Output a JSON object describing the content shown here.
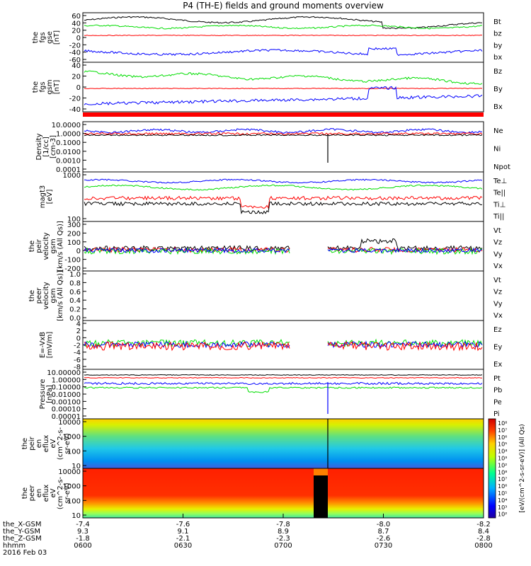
{
  "title": "P4 (TH-E) fields and ground moments overview",
  "colors": {
    "black": "#000000",
    "red": "#ff0000",
    "green": "#00dd00",
    "blue": "#0000ff"
  },
  "chart_data": [
    {
      "type": "line",
      "ylabel": [
        "the",
        "fgs",
        "gse",
        "[nT]"
      ],
      "yticks": [
        "60",
        "40",
        "20",
        "0",
        "-20",
        "-40",
        "-60"
      ],
      "series": [
        {
          "name": "Bt",
          "color": "#000000"
        },
        {
          "name": "bz",
          "color": "#ff0000"
        },
        {
          "name": "by",
          "color": "#00dd00"
        },
        {
          "name": "bx",
          "color": "#0000ff"
        }
      ]
    },
    {
      "type": "line",
      "ylabel": [
        "the",
        "fgs",
        "gsm",
        "[nT]"
      ],
      "yticks": [
        "40",
        "20",
        "0",
        "-20",
        "-40"
      ],
      "series": [
        {
          "name": "Bz",
          "color": "#ff0000"
        },
        {
          "name": "By",
          "color": "#00dd00"
        },
        {
          "name": "Bx",
          "color": "#0000ff"
        }
      ]
    },
    {
      "type": "line",
      "ylabel": [
        "Density",
        "[1/cc]",
        "[cm-3]"
      ],
      "yticks": [
        "10.0000",
        "1.0000",
        "0.1000",
        "0.0100",
        "0.0010",
        "0.0001"
      ],
      "log": true,
      "series": [
        {
          "name": "Ne",
          "color": "#ff0000"
        },
        {
          "name": "Ni",
          "color": "#000000"
        },
        {
          "name": "Npot",
          "color": "#0000ff"
        }
      ]
    },
    {
      "type": "line",
      "ylabel": [
        "magt3",
        "[eV]"
      ],
      "yticks": [
        "1000",
        "100"
      ],
      "log": true,
      "series": [
        {
          "name": "Te⊥",
          "color": "#ff0000"
        },
        {
          "name": "Te||",
          "color": "#000000"
        },
        {
          "name": "Ti⊥",
          "color": "#0000ff"
        },
        {
          "name": "Ti||",
          "color": "#00dd00"
        }
      ]
    },
    {
      "type": "line",
      "ylabel": [
        "the",
        "peir",
        "velocity",
        "gsm",
        "[km/s (All Qs)]"
      ],
      "yticks": [
        "300",
        "200",
        "100",
        "0",
        "-100",
        "-200"
      ],
      "series": [
        {
          "name": "Vt",
          "color": "#000000"
        },
        {
          "name": "Vz",
          "color": "#ff0000"
        },
        {
          "name": "Vy",
          "color": "#00dd00"
        },
        {
          "name": "Vx",
          "color": "#0000ff"
        }
      ]
    },
    {
      "type": "line",
      "ylabel": [
        "the",
        "peer",
        "velocity",
        "gsm",
        "[km/s (All Qs)]"
      ],
      "yticks": [
        "1.0",
        "0.8",
        "0.6",
        "0.4",
        "0.2",
        "0.0"
      ],
      "series": [
        {
          "name": "Vt",
          "color": "#000000"
        },
        {
          "name": "Vz",
          "color": "#ff0000"
        },
        {
          "name": "Vy",
          "color": "#00dd00"
        },
        {
          "name": "Vx",
          "color": "#0000ff"
        }
      ]
    },
    {
      "type": "line",
      "ylabel": [
        "E=-VxB",
        "[mV/m]"
      ],
      "yticks": [
        "4",
        "2",
        "0",
        "-2",
        "-4",
        "-6",
        "-8"
      ],
      "series": [
        {
          "name": "Ez",
          "color": "#ff0000"
        },
        {
          "name": "Ey",
          "color": "#00dd00"
        },
        {
          "name": "Ex",
          "color": "#0000ff"
        }
      ]
    },
    {
      "type": "line",
      "ylabel": [
        "Pressure",
        "[nPa]"
      ],
      "yticks": [
        "10.00000",
        "1.00000",
        "0.10000",
        "0.01000",
        "0.00100",
        "0.00010",
        "0.00001"
      ],
      "log": true,
      "series": [
        {
          "name": "Pt",
          "color": "#000000"
        },
        {
          "name": "Pb",
          "color": "#ff0000"
        },
        {
          "name": "Pe",
          "color": "#00dd00"
        },
        {
          "name": "Pi",
          "color": "#0000ff"
        }
      ]
    },
    {
      "type": "heatmap",
      "ylabel": [
        "the",
        "peir",
        "en",
        "eflux",
        "eV",
        "(cm^2-s-",
        "sr-eV)"
      ],
      "yticks": [
        "10000",
        "1000",
        "100",
        "10"
      ]
    },
    {
      "type": "heatmap",
      "ylabel": [
        "the",
        "peer",
        "en",
        "eflux",
        "eV",
        "(cm^2-s-",
        "sr-eV)"
      ],
      "yticks": [
        "10000",
        "1000",
        "100",
        "10"
      ]
    }
  ],
  "colorbar": {
    "ticks": [
      "10⁸",
      "10⁷",
      "10⁶",
      "10⁵",
      "10⁴",
      "10³",
      "10²",
      "10⁸",
      "10⁷",
      "10⁶",
      "10⁵",
      "10⁴",
      "10³",
      "10²"
    ],
    "label": "[eV/(cm^2-s-sr-eV)] (All Qs)"
  },
  "xaxis": {
    "row_labels": [
      "the_X-GSM",
      "the_Y-GSM",
      "the_Z-GSM",
      "hhmm",
      "2016 Feb 03"
    ],
    "columns": [
      {
        "x": "-7.4",
        "y": "9.3",
        "z": "-1.8",
        "hhmm": "0600"
      },
      {
        "x": "-7.6",
        "y": "9.1",
        "z": "-2.1",
        "hhmm": "0630"
      },
      {
        "x": "-7.8",
        "y": "8.9",
        "z": "-2.3",
        "hhmm": "0700"
      },
      {
        "x": "-8.0",
        "y": "8.7",
        "z": "-2.6",
        "hhmm": "0730"
      },
      {
        "x": "-8.2",
        "y": "8.4",
        "z": "-2.8",
        "hhmm": "0800"
      }
    ]
  }
}
